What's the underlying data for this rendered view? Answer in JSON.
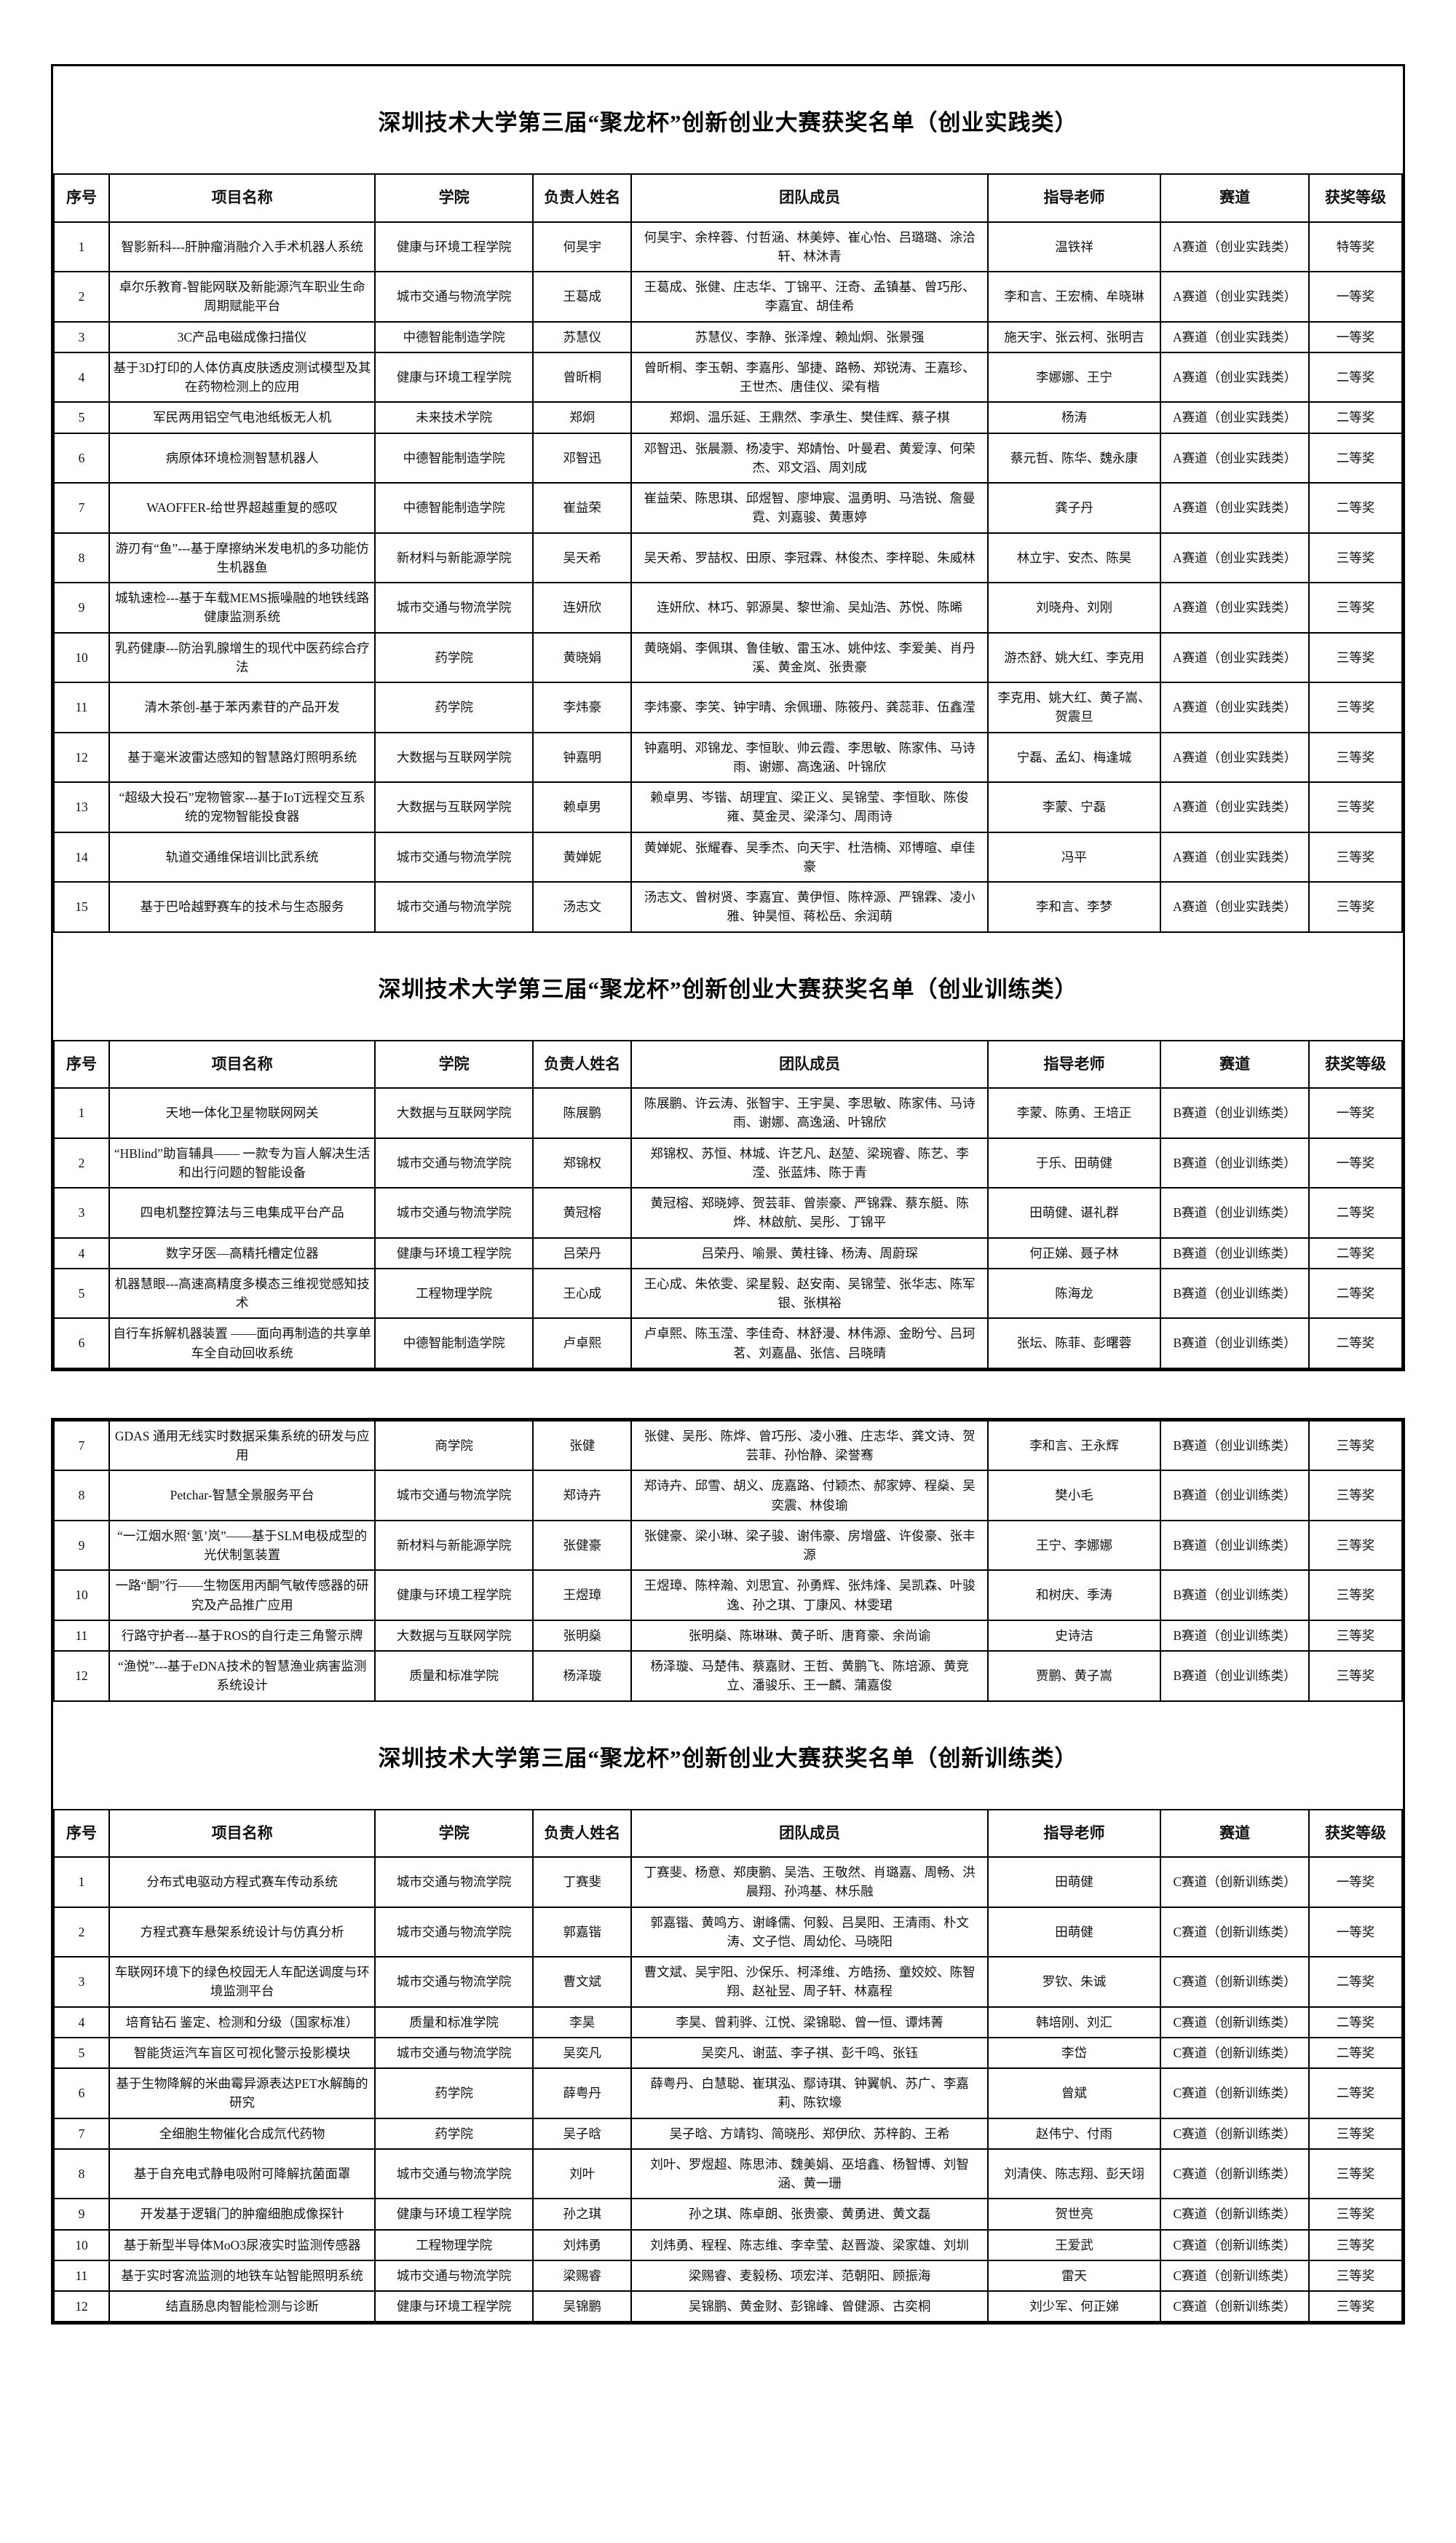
{
  "document_title": "深圳技术大学第三届“聚龙杯”创新创业大赛获奖名单",
  "tables": [
    {
      "title": "深圳技术大学第三届“聚龙杯”创新创业大赛获奖名单（创业实践类）",
      "headers": [
        "序号",
        "项目名称",
        "学院",
        "负责人姓名",
        "团队成员",
        "指导老师",
        "赛道",
        "获奖等级"
      ],
      "rows": [
        {
          "no": "1",
          "project": "智影新科---肝肿瘤消融介入手术机器人系统",
          "college": "健康与环境工程学院",
          "leader": "何昊宇",
          "members": "何昊宇、余梓蓉、付哲涵、林美婷、崔心怡、吕璐璐、涂洽轩、林沐青",
          "teachers": "温铁祥",
          "track": "A赛道（创业实践类）",
          "award": "特等奖"
        },
        {
          "no": "2",
          "project": "卓尔乐教育-智能网联及新能源汽车职业生命周期赋能平台",
          "college": "城市交通与物流学院",
          "leader": "王葛成",
          "members": "王葛成、张健、庄志华、丁锦平、汪奇、孟镇基、曾巧彤、李嘉宜、胡佳希",
          "teachers": "李和言、王宏楠、牟晓琳",
          "track": "A赛道（创业实践类）",
          "award": "一等奖"
        },
        {
          "no": "3",
          "project": "3C产品电磁成像扫描仪",
          "college": "中德智能制造学院",
          "leader": "苏慧仪",
          "members": "苏慧仪、李静、张泽煌、赖灿炯、张景强",
          "teachers": "施天宇、张云柯、张明吉",
          "track": "A赛道（创业实践类）",
          "award": "一等奖"
        },
        {
          "no": "4",
          "project": "基于3D打印的人体仿真皮肤透皮测试模型及其在药物检测上的应用",
          "college": "健康与环境工程学院",
          "leader": "曾昕桐",
          "members": "曾昕桐、李玉朝、李嘉彤、邹捷、路畅、郑锐涛、王嘉珍、王世杰、唐佳仪、梁有楷",
          "teachers": "李娜娜、王宁",
          "track": "A赛道（创业实践类）",
          "award": "二等奖"
        },
        {
          "no": "5",
          "project": "军民两用铝空气电池纸板无人机",
          "college": "未来技术学院",
          "leader": "郑炯",
          "members": "郑炯、温乐延、王鼎然、李承生、樊佳辉、蔡子棋",
          "teachers": "杨涛",
          "track": "A赛道（创业实践类）",
          "award": "二等奖"
        },
        {
          "no": "6",
          "project": "病原体环境检测智慧机器人",
          "college": "中德智能制造学院",
          "leader": "邓智迅",
          "members": "邓智迅、张晨灏、杨凌宇、郑婧怡、叶曼君、黄爱淳、何荣杰、邓文滔、周刘成",
          "teachers": "蔡元哲、陈华、魏永康",
          "track": "A赛道（创业实践类）",
          "award": "二等奖"
        },
        {
          "no": "7",
          "project": "WAOFFER-给世界超越重复的感叹",
          "college": "中德智能制造学院",
          "leader": "崔益荣",
          "members": "崔益荣、陈思琪、邱煜智、廖坤宸、温勇明、马浩锐、詹曼霓、刘嘉骏、黄惠婷",
          "teachers": "龚子丹",
          "track": "A赛道（创业实践类）",
          "award": "二等奖"
        },
        {
          "no": "8",
          "project": "游刃有“鱼”---基于摩擦纳米发电机的多功能仿生机器鱼",
          "college": "新材料与新能源学院",
          "leader": "吴天希",
          "members": "吴天希、罗喆权、田原、李冠霖、林俊杰、李梓聪、朱威林",
          "teachers": "林立宇、安杰、陈昊",
          "track": "A赛道（创业实践类）",
          "award": "三等奖"
        },
        {
          "no": "9",
          "project": "城轨速检---基于车载MEMS振噪融的地铁线路健康监测系统",
          "college": "城市交通与物流学院",
          "leader": "连妍欣",
          "members": "连妍欣、林巧、郭源昊、黎世渝、吴灿浩、苏悦、陈晞",
          "teachers": "刘晓舟、刘刚",
          "track": "A赛道（创业实践类）",
          "award": "三等奖"
        },
        {
          "no": "10",
          "project": "乳药健康---防治乳腺增生的现代中医药综合疗法",
          "college": "药学院",
          "leader": "黄晓娟",
          "members": "黄晓娟、李佩琪、鲁佳敏、雷玉冰、姚仲炫、李爱美、肖丹溪、黄金岚、张贵豪",
          "teachers": "游杰舒、姚大红、李克用",
          "track": "A赛道（创业实践类）",
          "award": "三等奖"
        },
        {
          "no": "11",
          "project": "清木茶创-基于苯丙素苷的产品开发",
          "college": "药学院",
          "leader": "李炜豪",
          "members": "李炜豪、李笑、钟宇晴、余佩珊、陈筱丹、龚蕊菲、伍鑫滢",
          "teachers": "李克用、姚大红、黄子嵩、贺震旦",
          "track": "A赛道（创业实践类）",
          "award": "三等奖"
        },
        {
          "no": "12",
          "project": "基于毫米波雷达感知的智慧路灯照明系统",
          "college": "大数据与互联网学院",
          "leader": "钟嘉明",
          "members": "钟嘉明、邓锦龙、李恒耿、帅云霞、李思敏、陈家伟、马诗雨、谢娜、高逸涵、叶锦欣",
          "teachers": "宁磊、孟幻、梅逢城",
          "track": "A赛道（创业实践类）",
          "award": "三等奖"
        },
        {
          "no": "13",
          "project": "“超级大投石”宠物管家---基于IoT远程交互系统的宠物智能投食器",
          "college": "大数据与互联网学院",
          "leader": "赖卓男",
          "members": "赖卓男、岑锴、胡理宜、梁正义、吴锦莹、李恒耿、陈俊雍、莫金灵、梁泽匀、周雨诗",
          "teachers": "李蒙、宁磊",
          "track": "A赛道（创业实践类）",
          "award": "三等奖"
        },
        {
          "no": "14",
          "project": "轨道交通维保培训比武系统",
          "college": "城市交通与物流学院",
          "leader": "黄婵妮",
          "members": "黄婵妮、张耀春、吴季杰、向天宇、杜浩楠、邓博暄、卓佳豪",
          "teachers": "冯平",
          "track": "A赛道（创业实践类）",
          "award": "三等奖"
        },
        {
          "no": "15",
          "project": "基于巴哈越野赛车的技术与生态服务",
          "college": "城市交通与物流学院",
          "leader": "汤志文",
          "members": "汤志文、曾树贤、李嘉宜、黄伊恒、陈梓源、严锦霖、凌小雅、钟昊恒、蒋松岳、余润萌",
          "teachers": "李和言、李梦",
          "track": "A赛道（创业实践类）",
          "award": "三等奖"
        }
      ]
    },
    {
      "title": "深圳技术大学第三届“聚龙杯”创新创业大赛获奖名单（创业训练类）",
      "headers": [
        "序号",
        "项目名称",
        "学院",
        "负责人姓名",
        "团队成员",
        "指导老师",
        "赛道",
        "获奖等级"
      ],
      "rows": [
        {
          "no": "1",
          "project": "天地一体化卫星物联网网关",
          "college": "大数据与互联网学院",
          "leader": "陈展鹏",
          "members": "陈展鹏、许云涛、张智宇、王宇昊、李思敏、陈家伟、马诗雨、谢娜、高逸涵、叶锦欣",
          "teachers": "李蒙、陈勇、王培正",
          "track": "B赛道（创业训练类）",
          "award": "一等奖"
        },
        {
          "no": "2",
          "project": "“HBlind”助盲辅具—— 一款专为盲人解决生活和出行问题的智能设备",
          "college": "城市交通与物流学院",
          "leader": "郑锦权",
          "members": "郑锦权、苏恒、林城、许艺凡、赵堃、梁琬睿、陈艺、李滢、张蓝炜、陈于青",
          "teachers": "于乐、田萌健",
          "track": "B赛道（创业训练类）",
          "award": "一等奖"
        },
        {
          "no": "3",
          "project": "四电机整控算法与三电集成平台产品",
          "college": "城市交通与物流学院",
          "leader": "黄冠榕",
          "members": "黄冠榕、郑晓婷、贺芸菲、曾崇豪、严锦霖、蔡东艇、陈烨、林啟航、吴彤、丁锦平",
          "teachers": "田萌健、谌礼群",
          "track": "B赛道（创业训练类）",
          "award": "二等奖"
        },
        {
          "no": "4",
          "project": "数字牙医—高精托槽定位器",
          "college": "健康与环境工程学院",
          "leader": "吕荣丹",
          "members": "吕荣丹、喻景、黄柱锋、杨涛、周蔚琛",
          "teachers": "何正娣、聂子林",
          "track": "B赛道（创业训练类）",
          "award": "二等奖"
        },
        {
          "no": "5",
          "project": "机器慧眼---高速高精度多模态三维视觉感知技术",
          "college": "工程物理学院",
          "leader": "王心成",
          "members": "王心成、朱依雯、梁星毅、赵安南、吴锦莹、张华志、陈军银、张棋裕",
          "teachers": "陈海龙",
          "track": "B赛道（创业训练类）",
          "award": "二等奖"
        },
        {
          "no": "6",
          "project": "自行车拆解机器装置 ——面向再制造的共享单车全自动回收系统",
          "college": "中德智能制造学院",
          "leader": "卢卓熙",
          "members": "卢卓熙、陈玉滢、李佳奇、林舒漫、林伟源、金盼兮、吕珂茗、刘嘉晶、张信、吕晓晴",
          "teachers": "张坛、陈菲、彭曙蓉",
          "track": "B赛道（创业训练类）",
          "award": "二等奖"
        },
        {
          "no": "7",
          "project": "GDAS 通用无线实时数据采集系统的研发与应用",
          "college": "商学院",
          "leader": "张健",
          "members": "张健、吴彤、陈烨、曾巧彤、凌小雅、庄志华、龚文诗、贺芸菲、孙怡静、梁誉骞",
          "teachers": "李和言、王永辉",
          "track": "B赛道（创业训练类）",
          "award": "三等奖"
        },
        {
          "no": "8",
          "project": "Petchar-智慧全景服务平台",
          "college": "城市交通与物流学院",
          "leader": "郑诗卉",
          "members": "郑诗卉、邱雪、胡义、庞嘉路、付颖杰、郝家婷、程燊、吴奕震、林俊瑜",
          "teachers": "樊小毛",
          "track": "B赛道（创业训练类）",
          "award": "三等奖"
        },
        {
          "no": "9",
          "project": "“一江烟水照‘氢’岚”——基于SLM电极成型的光伏制氢装置",
          "college": "新材料与新能源学院",
          "leader": "张健豪",
          "members": "张健豪、梁小琳、梁子骏、谢伟豪、房增盛、许俊豪、张丰源",
          "teachers": "王宁、李娜娜",
          "track": "B赛道（创业训练类）",
          "award": "三等奖"
        },
        {
          "no": "10",
          "project": "一路“酮”行——生物医用丙酮气敏传感器的研究及产品推广应用",
          "college": "健康与环境工程学院",
          "leader": "王煜璋",
          "members": "王煜璋、陈梓瀚、刘思宜、孙勇辉、张炜烽、吴凯森、叶骏逸、孙之琪、丁康风、林雯珺",
          "teachers": "和树庆、季涛",
          "track": "B赛道（创业训练类）",
          "award": "三等奖"
        },
        {
          "no": "11",
          "project": "行路守护者---基于ROS的自行走三角警示牌",
          "college": "大数据与互联网学院",
          "leader": "张明燊",
          "members": "张明燊、陈琳琳、黄子昕、唐育豪、余尚谕",
          "teachers": "史诗洁",
          "track": "B赛道（创业训练类）",
          "award": "三等奖"
        },
        {
          "no": "12",
          "project": "“渔悦”---基于eDNA技术的智慧渔业病害监测系统设计",
          "college": "质量和标准学院",
          "leader": "杨泽璇",
          "members": "杨泽璇、马楚伟、蔡嘉财、王哲、黄鹏飞、陈培源、黄竞立、潘骏乐、王一麟、蒲嘉俊",
          "teachers": "贾鹏、黄子嵩",
          "track": "B赛道（创业训练类）",
          "award": "三等奖"
        }
      ]
    },
    {
      "title": "深圳技术大学第三届“聚龙杯”创新创业大赛获奖名单（创新训练类）",
      "headers": [
        "序号",
        "项目名称",
        "学院",
        "负责人姓名",
        "团队成员",
        "指导老师",
        "赛道",
        "获奖等级"
      ],
      "rows": [
        {
          "no": "1",
          "project": "分布式电驱动方程式赛车传动系统",
          "college": "城市交通与物流学院",
          "leader": "丁赛斐",
          "members": "丁赛斐、杨意、郑庚鹏、吴浩、王敬然、肖璐嘉、周畅、洪晨翔、孙鸿基、林乐融",
          "teachers": "田萌健",
          "track": "C赛道（创新训练类）",
          "award": "一等奖"
        },
        {
          "no": "2",
          "project": "方程式赛车悬架系统设计与仿真分析",
          "college": "城市交通与物流学院",
          "leader": "郭嘉锴",
          "members": "郭嘉锴、黄鸣方、谢峰儒、何毅、吕昊阳、王清雨、朴文涛、文子恺、周幼伦、马晓阳",
          "teachers": "田萌健",
          "track": "C赛道（创新训练类）",
          "award": "一等奖"
        },
        {
          "no": "3",
          "project": "车联网环境下的绿色校园无人车配送调度与环境监测平台",
          "college": "城市交通与物流学院",
          "leader": "曹文斌",
          "members": "曹文斌、吴宇阳、沙保乐、柯泽维、方皓扬、童姣姣、陈智翔、赵祉昱、周子轩、林嘉程",
          "teachers": "罗钦、朱诚",
          "track": "C赛道（创新训练类）",
          "award": "二等奖"
        },
        {
          "no": "4",
          "project": "培育钻石 鉴定、检测和分级（国家标准）",
          "college": "质量和标准学院",
          "leader": "李昊",
          "members": "李昊、曾莉骅、江悦、梁锦聪、曾一恒、谭炜菁",
          "teachers": "韩培刚、刘汇",
          "track": "C赛道（创新训练类）",
          "award": "二等奖"
        },
        {
          "no": "5",
          "project": "智能货运汽车盲区可视化警示投影模块",
          "college": "城市交通与物流学院",
          "leader": "吴奕凡",
          "members": "吴奕凡、谢蓝、李子祺、彭千鸣、张钰",
          "teachers": "李岱",
          "track": "C赛道（创新训练类）",
          "award": "二等奖"
        },
        {
          "no": "6",
          "project": "基于生物降解的米曲霉异源表达PET水解酶的研究",
          "college": "药学院",
          "leader": "薛粤丹",
          "members": "薛粤丹、白慧聪、崔琪泓、鄢诗琪、钟翼帆、苏广、李嘉莉、陈钦壕",
          "teachers": "曾斌",
          "track": "C赛道（创新训练类）",
          "award": "二等奖"
        },
        {
          "no": "7",
          "project": "全细胞生物催化合成氘代药物",
          "college": "药学院",
          "leader": "吴子晗",
          "members": "吴子晗、方靖钧、简晓彤、郑伊欣、苏梓韵、王希",
          "teachers": "赵伟宁、付雨",
          "track": "C赛道（创新训练类）",
          "award": "三等奖"
        },
        {
          "no": "8",
          "project": "基于自充电式静电吸附可降解抗菌面罩",
          "college": "城市交通与物流学院",
          "leader": "刘叶",
          "members": "刘叶、罗煜超、陈思沛、魏美娟、巫培鑫、杨智博、刘智涵、黄一珊",
          "teachers": "刘清侠、陈志翔、彭天翊",
          "track": "C赛道（创新训练类）",
          "award": "三等奖"
        },
        {
          "no": "9",
          "project": "开发基于逻辑门的肿瘤细胞成像探针",
          "college": "健康与环境工程学院",
          "leader": "孙之琪",
          "members": "孙之琪、陈卓朗、张贵豪、黄勇进、黄文磊",
          "teachers": "贺世亮",
          "track": "C赛道（创新训练类）",
          "award": "三等奖"
        },
        {
          "no": "10",
          "project": "基于新型半导体MoO3尿液实时监测传感器",
          "college": "工程物理学院",
          "leader": "刘炜勇",
          "members": "刘炜勇、程程、陈志维、李幸莹、赵晋漩、梁家雄、刘圳",
          "teachers": "王爱武",
          "track": "C赛道（创新训练类）",
          "award": "三等奖"
        },
        {
          "no": "11",
          "project": "基于实时客流监测的地铁车站智能照明系统",
          "college": "城市交通与物流学院",
          "leader": "梁赐睿",
          "members": "梁赐睿、麦毅杨、项宏洋、范朝阳、顾振海",
          "teachers": "雷天",
          "track": "C赛道（创新训练类）",
          "award": "三等奖"
        },
        {
          "no": "12",
          "project": "结直肠息肉智能检测与诊断",
          "college": "健康与环境工程学院",
          "leader": "吴锦鹏",
          "members": "吴锦鹏、黄金财、彭锦峰、曾健源、古奕桐",
          "teachers": "刘少军、何正娣",
          "track": "C赛道（创新训练类）",
          "award": "三等奖"
        }
      ]
    }
  ]
}
